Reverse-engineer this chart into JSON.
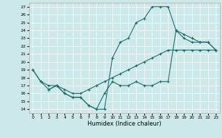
{
  "xlabel": "Humidex (Indice chaleur)",
  "bg_color": "#cce8e8",
  "line_color": "#1a6b6b",
  "xlim": [
    -0.5,
    23.5
  ],
  "ylim": [
    13.5,
    27.5
  ],
  "xticks": [
    0,
    1,
    2,
    3,
    4,
    5,
    6,
    7,
    8,
    9,
    10,
    11,
    12,
    13,
    14,
    15,
    16,
    17,
    18,
    19,
    20,
    21,
    22,
    23
  ],
  "yticks": [
    14,
    15,
    16,
    17,
    18,
    19,
    20,
    21,
    22,
    23,
    24,
    25,
    26,
    27
  ],
  "lines": [
    {
      "x": [
        0,
        1,
        2,
        3,
        4,
        5,
        6,
        7,
        8,
        9,
        10,
        11,
        12,
        13,
        14,
        15,
        16,
        17,
        18,
        19,
        20,
        21,
        22,
        23
      ],
      "y": [
        19,
        17.5,
        16.5,
        17,
        16,
        15.5,
        15.5,
        14.5,
        14,
        14,
        20.5,
        22.5,
        23,
        25,
        25.5,
        27,
        27,
        27,
        24,
        23,
        22.5,
        22.5,
        22.5,
        21.5
      ]
    },
    {
      "x": [
        0,
        1,
        2,
        3,
        4,
        5,
        6,
        7,
        8,
        9,
        10,
        11,
        12,
        13,
        14,
        15,
        16,
        17,
        18,
        19,
        20,
        21,
        22,
        23
      ],
      "y": [
        19,
        17.5,
        17,
        17,
        16.5,
        16,
        16,
        16.5,
        17,
        17.5,
        18,
        18.5,
        19,
        19.5,
        20,
        20.5,
        21,
        21.5,
        21.5,
        21.5,
        21.5,
        21.5,
        21.5,
        21.5
      ]
    },
    {
      "x": [
        2,
        3,
        4,
        5,
        6,
        7,
        8,
        9,
        10,
        11,
        12,
        13,
        14,
        15,
        16,
        17,
        18,
        19,
        20,
        21,
        22,
        23
      ],
      "y": [
        16.5,
        17,
        16,
        15.5,
        15.5,
        14.5,
        14,
        16,
        17.5,
        17,
        17,
        17.5,
        17,
        17,
        17.5,
        17.5,
        24,
        23.5,
        23,
        22.5,
        22.5,
        21.5
      ]
    }
  ]
}
